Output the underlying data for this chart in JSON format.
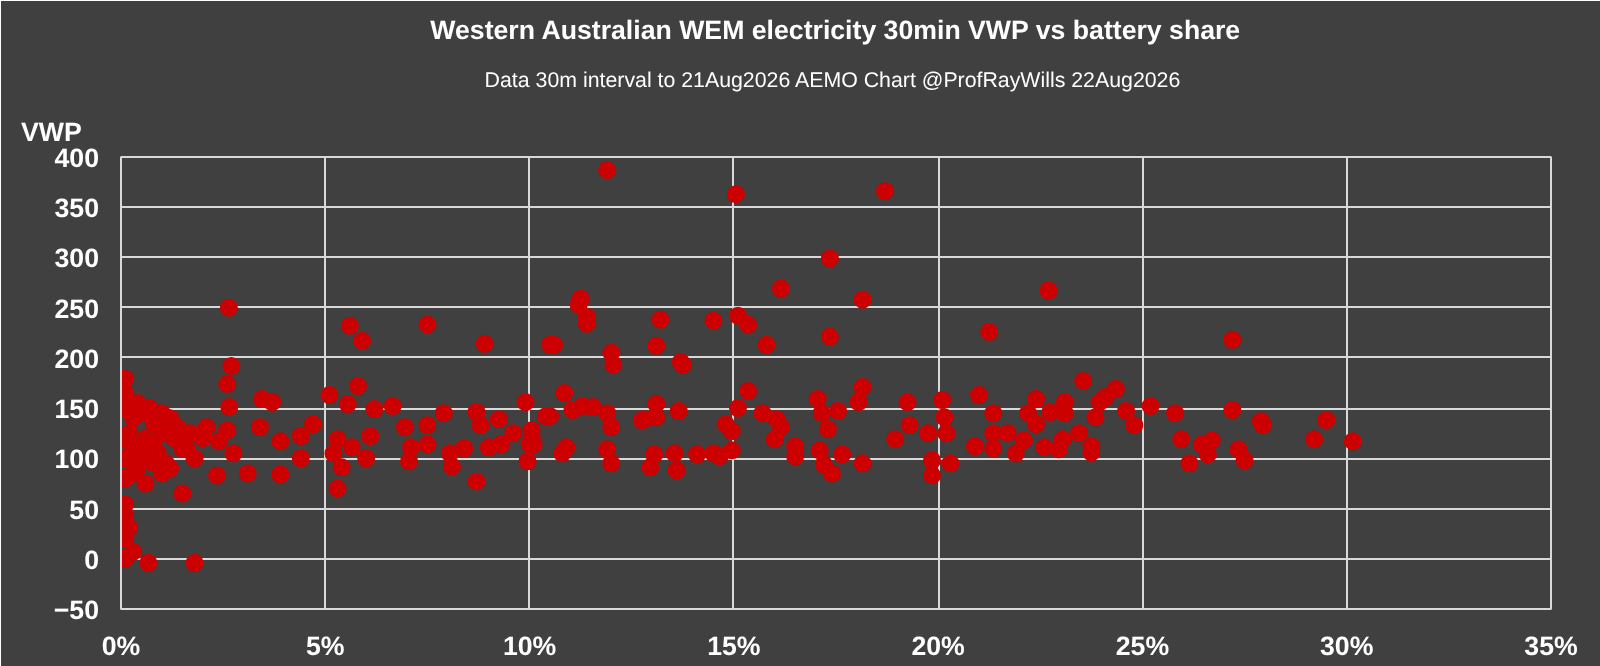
{
  "chart_data": {
    "type": "scatter",
    "title": "Western Australian WEM electricity 30min VWP vs battery share",
    "subtitle": "Data 30m interval to 21Aug2026  AEMO Chart @ProfRayWills 22Aug2026",
    "ylabel": "VWP",
    "xlim": [
      0,
      35
    ],
    "ylim": [
      -50,
      400
    ],
    "xticks": [
      {
        "value": 0,
        "label": "0%"
      },
      {
        "value": 5,
        "label": "5%"
      },
      {
        "value": 10,
        "label": "10%"
      },
      {
        "value": 15,
        "label": "15%"
      },
      {
        "value": 20,
        "label": "20%"
      },
      {
        "value": 25,
        "label": "25%"
      },
      {
        "value": 30,
        "label": "30%"
      },
      {
        "value": 35,
        "label": "35%"
      }
    ],
    "yticks": [
      -50,
      0,
      50,
      100,
      150,
      200,
      250,
      300,
      350,
      400
    ],
    "grid": true,
    "marker": "circle",
    "series": [
      {
        "color": "#cc0000",
        "x": [
          0.1,
          0.1,
          0.3,
          0.4,
          0.6,
          0.7,
          0.8,
          1.0,
          0.1,
          0.2,
          0.3,
          0.6,
          0.8,
          1.0,
          1.2,
          1.4,
          0.1,
          0.4,
          0.5,
          0.7,
          0.9,
          1.1,
          1.3,
          1.5,
          1.7,
          0.1,
          0.3,
          0.4,
          0.6,
          0.8,
          1.0,
          1.2,
          1.6,
          1.8,
          2.0,
          0.1,
          0.1,
          0.2,
          0.1,
          0.1,
          0.3,
          0.67,
          1.8,
          1.5,
          2.1,
          2.35,
          2.4,
          2.6,
          2.75,
          2.64,
          5.6,
          7.5,
          5.9,
          8.9,
          10.5,
          2.7,
          2.6,
          5.8,
          0.1,
          2.65,
          3.45,
          3.7,
          5.1,
          5.55,
          6.2,
          6.65,
          7.9,
          8.7,
          9.9,
          10.4,
          3.4,
          6.95,
          7.5,
          8.8,
          9.25,
          9.6,
          10.05,
          3.9,
          4.4,
          4.7,
          5.3,
          5.65,
          6.1,
          7.1,
          7.5,
          8.05,
          8.4,
          9.0,
          9.3,
          10.0,
          3.1,
          3.9,
          4.4,
          5.2,
          5.4,
          6.0,
          7.05,
          8.1,
          8.7,
          9.95,
          5.3,
          11.9,
          15.05,
          18.7,
          17.35,
          16.15,
          18.15,
          11.25,
          11.2,
          11.4,
          11.4,
          13.2,
          14.5,
          15.1,
          15.35,
          10.6,
          13.1,
          15.8,
          17.35,
          12.0,
          12.05,
          13.7,
          13.75,
          21.25,
          10.85,
          10.5,
          11.05,
          11.3,
          11.55,
          11.9,
          12.0,
          12.75,
          13.1,
          13.1,
          13.65,
          14.8,
          14.95,
          15.1,
          15.35,
          15.7,
          16.05,
          16.15,
          16.0,
          16.5,
          16.5,
          17.05,
          17.15,
          17.55,
          17.3,
          18.05,
          18.15,
          17.1,
          17.2,
          17.4,
          17.65,
          18.15,
          19.25,
          19.3,
          18.95,
          19.75,
          20.15,
          20.1,
          20.2,
          19.85,
          19.85,
          20.3,
          20.9,
          21.0,
          21.35,
          21.35,
          21.35,
          21.7,
          10.05,
          10.1,
          10.9,
          10.8,
          11.9,
          12.0,
          12.95,
          13.05,
          13.55,
          13.6,
          14.1,
          14.5,
          14.65,
          14.95,
          12.8,
          22.7,
          27.2,
          23.55,
          22.4,
          24.35,
          24.1,
          23.95,
          23.1,
          22.75,
          23.1,
          22.2,
          22.4,
          23.85,
          24.6,
          25.2,
          24.8,
          25.8,
          27.2,
          27.9,
          27.95,
          29.5,
          29.2,
          30.15,
          25.95,
          26.45,
          26.7,
          26.6,
          27.35,
          27.5,
          26.15,
          22.1,
          22.6,
          22.95,
          23.05,
          23.45,
          23.75,
          23.75,
          21.9
        ],
        "values": [
          165,
          150,
          140,
          155,
          145,
          150,
          135,
          145,
          120,
          125,
          110,
          120,
          115,
          125,
          140,
          130,
          100,
          95,
          110,
          100,
          105,
          95,
          120,
          110,
          125,
          80,
          85,
          90,
          75,
          95,
          85,
          90,
          110,
          100,
          120,
          54,
          43,
          31,
          20,
          0,
          7,
          -4,
          -4,
          65,
          131,
          83,
          117,
          128,
          105,
          250,
          232,
          233,
          217,
          214,
          213,
          192,
          174,
          172,
          179,
          151,
          159,
          156,
          163,
          154,
          149,
          152,
          145,
          146,
          156,
          142,
          131,
          131,
          133,
          133,
          139,
          125,
          122,
          117,
          122,
          134,
          119,
          111,
          122,
          111,
          114,
          105,
          110,
          111,
          114,
          114,
          85,
          84,
          100,
          105,
          91,
          100,
          97,
          92,
          77,
          97,
          70,
          387,
          363,
          366,
          299,
          269,
          258,
          259,
          253,
          241,
          234,
          238,
          237,
          242,
          233,
          213,
          212,
          213,
          221,
          205,
          193,
          196,
          193,
          226,
          165,
          142,
          148,
          152,
          151,
          145,
          131,
          138,
          154,
          141,
          147,
          134,
          127,
          150,
          167,
          145,
          139,
          131,
          119,
          112,
          102,
          159,
          145,
          147,
          129,
          156,
          171,
          108,
          94,
          85,
          104,
          95,
          156,
          133,
          119,
          125,
          141,
          158,
          125,
          98,
          83,
          95,
          112,
          163,
          145,
          125,
          110,
          125,
          128,
          114,
          111,
          105,
          109,
          95,
          91,
          104,
          105,
          88,
          104,
          105,
          102,
          108,
          139,
          267,
          218,
          177,
          159,
          169,
          161,
          156,
          156,
          146,
          145,
          145,
          134,
          141,
          147,
          152,
          133,
          145,
          148,
          137,
          133,
          138,
          119,
          117,
          119,
          114,
          118,
          104,
          109,
          98,
          95,
          118,
          111,
          109,
          119,
          125,
          112,
          106,
          105
        ]
      }
    ]
  }
}
